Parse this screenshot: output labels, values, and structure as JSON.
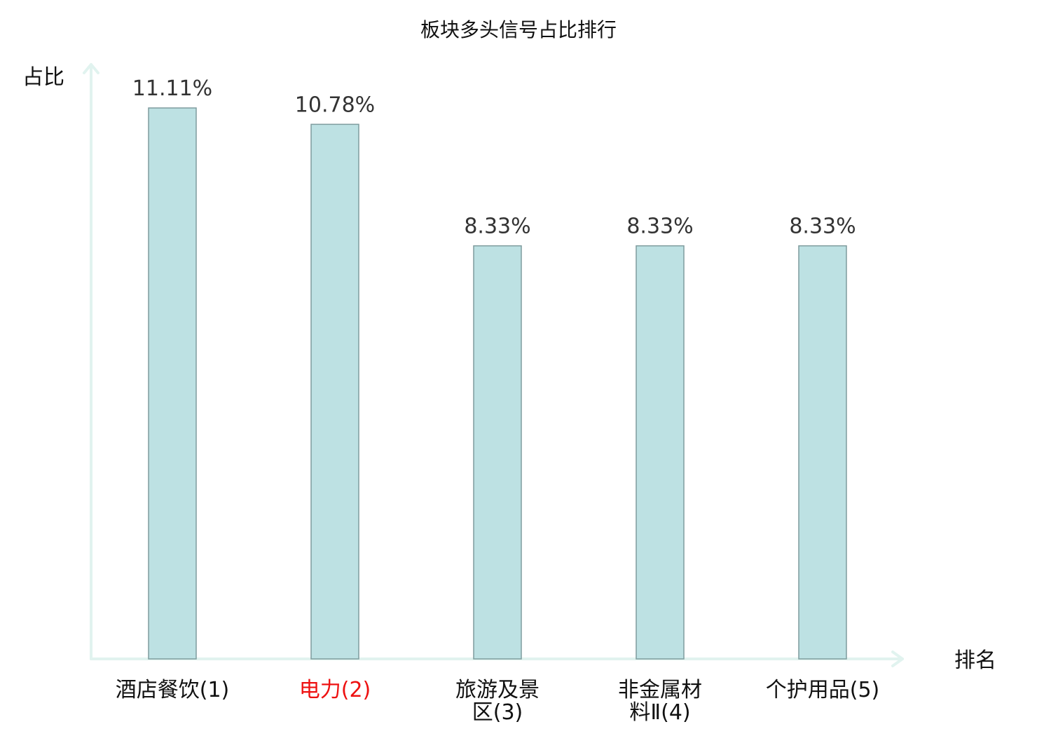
{
  "chart_data": {
    "type": "bar",
    "title": "板块多头信号占比排行",
    "xlabel": "排名",
    "ylabel": "占比",
    "categories": [
      {
        "lines": [
          "酒店餐饮(1)"
        ],
        "highlight": false
      },
      {
        "lines": [
          "电力(2)"
        ],
        "highlight": true
      },
      {
        "lines": [
          "旅游及景",
          "区(3)"
        ],
        "highlight": false
      },
      {
        "lines": [
          "非金属材",
          "料Ⅱ(4)"
        ],
        "highlight": false
      },
      {
        "lines": [
          "个护用品(5)"
        ],
        "highlight": false
      }
    ],
    "values": [
      11.11,
      10.78,
      8.33,
      8.33,
      8.33
    ],
    "value_labels": [
      "11.11%",
      "10.78%",
      "8.33%",
      "8.33%",
      "8.33%"
    ],
    "ylim": [
      0,
      11.5
    ],
    "grid": false,
    "colors": {
      "bar_fill": "#bde1e3",
      "bar_stroke": "#7f9c9e",
      "axis": "#e1f3ef",
      "highlight_label": "#ee1111"
    }
  }
}
